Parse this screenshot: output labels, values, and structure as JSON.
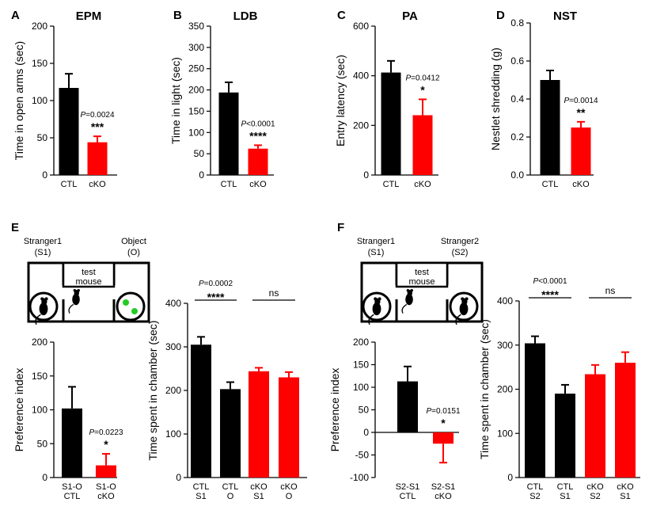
{
  "colors": {
    "ctl": "#000000",
    "cko": "#ff0000",
    "dot": "#22cc22"
  },
  "panels": {
    "A": {
      "letter": "A"
    },
    "B": {
      "letter": "B"
    },
    "C": {
      "letter": "C"
    },
    "D": {
      "letter": "D"
    },
    "E": {
      "letter": "E",
      "left_label": "Stranger1",
      "left_sub": "(S1)",
      "right_label": "Object",
      "right_sub": "(O)",
      "test_line1": "test",
      "test_line2": "mouse"
    },
    "F": {
      "letter": "F",
      "left_label": "Stranger1",
      "left_sub": "(S1)",
      "right_label": "Stranger2",
      "right_sub": "(S2)",
      "test_line1": "test",
      "test_line2": "mouse"
    }
  },
  "chart_data": [
    {
      "id": "A",
      "type": "bar",
      "title": "EPM",
      "ylabel": "Time in open arms (sec)",
      "ylim": [
        0,
        200
      ],
      "yticks": [
        0,
        50,
        100,
        150,
        200
      ],
      "categories": [
        [
          "CTL"
        ],
        [
          "cKO"
        ]
      ],
      "values": [
        117,
        44
      ],
      "errors": [
        19,
        8
      ],
      "colors": [
        "ctl",
        "cko"
      ],
      "annotations": [
        {
          "bar": 1,
          "p": "=0.0024",
          "stars": "***"
        }
      ]
    },
    {
      "id": "B",
      "type": "bar",
      "title": "LDB",
      "ylabel": "Time in light (sec)",
      "ylim": [
        0,
        350
      ],
      "yticks": [
        0,
        50,
        100,
        150,
        200,
        250,
        300,
        350
      ],
      "categories": [
        [
          "CTL"
        ],
        [
          "cKO"
        ]
      ],
      "values": [
        194,
        62
      ],
      "errors": [
        24,
        8
      ],
      "colors": [
        "ctl",
        "cko"
      ],
      "annotations": [
        {
          "bar": 1,
          "p": "<0.0001",
          "stars": "****"
        }
      ]
    },
    {
      "id": "C",
      "type": "bar",
      "title": "PA",
      "ylabel": "Entry latency (sec)",
      "ylim": [
        0,
        600
      ],
      "yticks": [
        0,
        200,
        400,
        600
      ],
      "categories": [
        [
          "CTL"
        ],
        [
          "cKO"
        ]
      ],
      "values": [
        413,
        241
      ],
      "errors": [
        47,
        64
      ],
      "colors": [
        "ctl",
        "cko"
      ],
      "annotations": [
        {
          "bar": 1,
          "p": "=0.0412",
          "stars": "*"
        }
      ]
    },
    {
      "id": "D",
      "type": "bar",
      "title": "NST",
      "ylabel": "Nestlet shredding (g)",
      "ylim": [
        0,
        0.8
      ],
      "yticks": [
        0.0,
        0.2,
        0.4,
        0.6,
        0.8
      ],
      "tick_decimals": 1,
      "categories": [
        [
          "CTL"
        ],
        [
          "cKO"
        ]
      ],
      "values": [
        0.5,
        0.25
      ],
      "errors": [
        0.05,
        0.03
      ],
      "colors": [
        "ctl",
        "cko"
      ],
      "annotations": [
        {
          "bar": 1,
          "p": "=0.0014",
          "stars": "**"
        }
      ]
    },
    {
      "id": "E-pref",
      "type": "bar",
      "title": "",
      "ylabel": "Preference index",
      "ylim": [
        0,
        200
      ],
      "yticks": [
        0,
        50,
        100,
        150,
        200
      ],
      "categories": [
        [
          "S1-O",
          "CTL"
        ],
        [
          "S1-O",
          "cKO"
        ]
      ],
      "values": [
        102,
        18
      ],
      "errors": [
        32,
        17
      ],
      "colors": [
        "ctl",
        "cko"
      ],
      "annotations": [
        {
          "bar": 1,
          "p": "=0.0223",
          "stars": "*"
        }
      ]
    },
    {
      "id": "E-time",
      "type": "bar",
      "title": "",
      "ylabel": "Time spent in chamber (sec)",
      "ylim": [
        0,
        400
      ],
      "yticks": [
        0,
        100,
        200,
        300,
        400
      ],
      "categories": [
        [
          "CTL",
          "S1"
        ],
        [
          "CTL",
          "O"
        ],
        [
          "cKO",
          "S1"
        ],
        [
          "cKO",
          "O"
        ]
      ],
      "values": [
        305,
        203,
        244,
        230
      ],
      "errors": [
        18,
        16,
        8,
        12
      ],
      "colors": [
        "ctl",
        "ctl",
        "cko",
        "cko"
      ],
      "brackets": [
        {
          "from": 0,
          "to": 1,
          "p": "=0.0002",
          "stars": "****"
        },
        {
          "from": 2,
          "to": 3,
          "p": "",
          "stars": "ns"
        }
      ]
    },
    {
      "id": "F-pref",
      "type": "bar",
      "title": "",
      "ylabel": "Preference index",
      "ylim": [
        -100,
        200
      ],
      "yticks": [
        -100,
        -50,
        0,
        50,
        100,
        150,
        200
      ],
      "categories": [
        [
          "S2-S1",
          "CTL"
        ],
        [
          "S2-S1",
          "cKO"
        ]
      ],
      "values": [
        113,
        -25
      ],
      "errors": [
        33,
        42
      ],
      "colors": [
        "ctl",
        "cko"
      ],
      "annotations": [
        {
          "bar": 1,
          "p": "=0.0151",
          "stars": "*"
        }
      ]
    },
    {
      "id": "F-time",
      "type": "bar",
      "title": "",
      "ylabel": "Time spent in chamber (sec)",
      "ylim": [
        0,
        400
      ],
      "yticks": [
        0,
        100,
        200,
        300,
        400
      ],
      "categories": [
        [
          "CTL",
          "S2"
        ],
        [
          "CTL",
          "S1"
        ],
        [
          "cKO",
          "S2"
        ],
        [
          "cKO",
          "S1"
        ]
      ],
      "values": [
        304,
        190,
        234,
        260
      ],
      "errors": [
        16,
        20,
        21,
        24
      ],
      "colors": [
        "ctl",
        "ctl",
        "cko",
        "cko"
      ],
      "brackets": [
        {
          "from": 0,
          "to": 1,
          "p": "<0.0001",
          "stars": "****"
        },
        {
          "from": 2,
          "to": 3,
          "p": "",
          "stars": "ns"
        }
      ]
    }
  ]
}
